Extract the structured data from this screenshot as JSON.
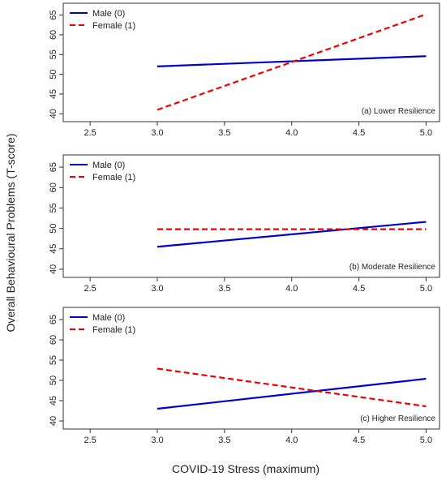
{
  "figure": {
    "ylabel": "Overall Behavioural Problems (T-score)",
    "xlabel": "COVID-19 Stress (maximum)"
  },
  "chart_data": [
    {
      "type": "line",
      "xticks": [
        "2.5",
        "3.0",
        "3.5",
        "4.0",
        "4.5",
        "5.0"
      ],
      "yticks": [
        "40",
        "45",
        "50",
        "55",
        "60",
        "65"
      ],
      "xlim": [
        2.3,
        5.1
      ],
      "ylim": [
        38,
        68
      ],
      "annotation": "(a) Lower Resilience",
      "legend_position": "top-left",
      "grid": false,
      "series": [
        {
          "name": "Male (0)",
          "color": "#0000cc",
          "dash": "solid",
          "x": [
            3.0,
            5.0
          ],
          "y": [
            52.0,
            54.6
          ]
        },
        {
          "name": "Female (1)",
          "color": "#ee0000",
          "dash": "dashed",
          "x": [
            3.0,
            5.0
          ],
          "y": [
            41.0,
            65.2
          ]
        }
      ]
    },
    {
      "type": "line",
      "xticks": [
        "2.5",
        "3.0",
        "3.5",
        "4.0",
        "4.5",
        "5.0"
      ],
      "yticks": [
        "40",
        "45",
        "50",
        "55",
        "60",
        "65"
      ],
      "xlim": [
        2.3,
        5.1
      ],
      "ylim": [
        38,
        68
      ],
      "annotation": "(b) Moderate Resilience",
      "legend_position": "top-left",
      "grid": false,
      "series": [
        {
          "name": "Male (0)",
          "color": "#0000cc",
          "dash": "solid",
          "x": [
            3.0,
            5.0
          ],
          "y": [
            45.5,
            51.6
          ]
        },
        {
          "name": "Female (1)",
          "color": "#ee0000",
          "dash": "dashed",
          "x": [
            3.0,
            5.0
          ],
          "y": [
            49.8,
            49.8
          ]
        }
      ]
    },
    {
      "type": "line",
      "xticks": [
        "2.5",
        "3.0",
        "3.5",
        "4.0",
        "4.5",
        "5.0"
      ],
      "yticks": [
        "40",
        "45",
        "50",
        "55",
        "60",
        "65"
      ],
      "xlim": [
        2.3,
        5.1
      ],
      "ylim": [
        38,
        68
      ],
      "annotation": "(c) Higher Resilience",
      "legend_position": "top-left",
      "grid": false,
      "series": [
        {
          "name": "Male (0)",
          "color": "#0000cc",
          "dash": "solid",
          "x": [
            3.0,
            5.0
          ],
          "y": [
            43.0,
            50.4
          ]
        },
        {
          "name": "Female (1)",
          "color": "#ee0000",
          "dash": "dashed",
          "x": [
            3.0,
            5.0
          ],
          "y": [
            52.9,
            43.6
          ]
        }
      ]
    }
  ]
}
